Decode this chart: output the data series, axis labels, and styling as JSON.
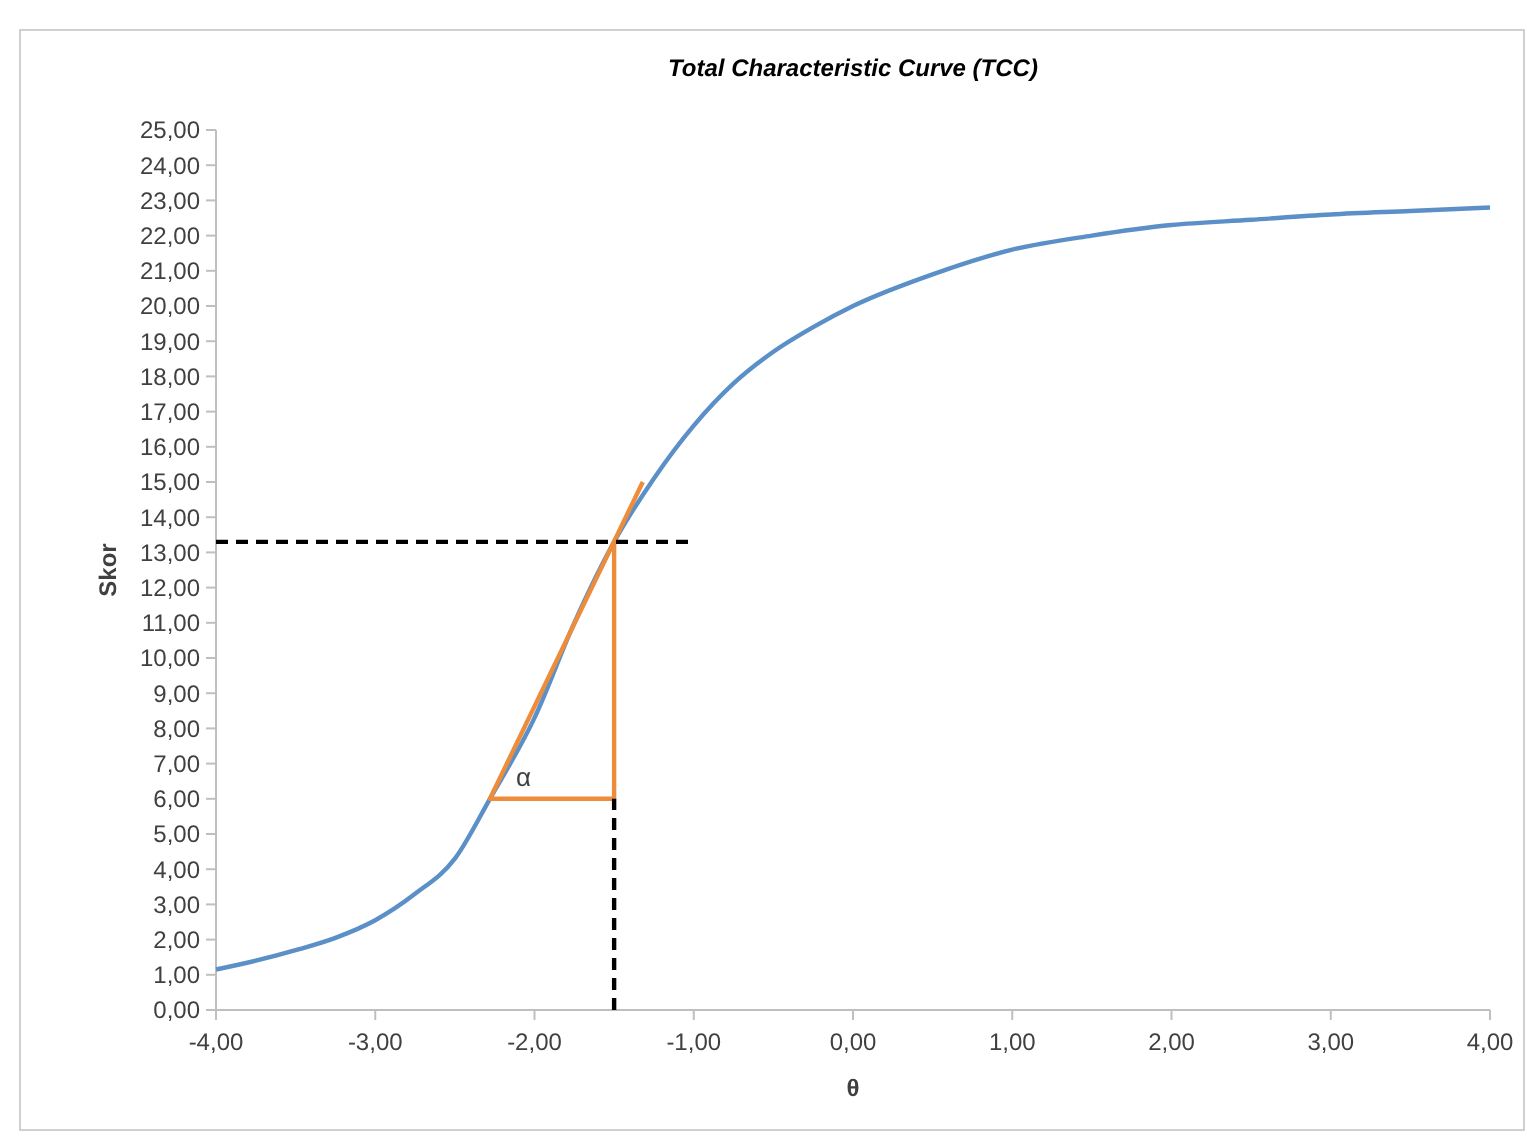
{
  "chart_data": {
    "type": "line",
    "title": "Total Characteristic Curve (TCC)",
    "xlabel": "θ",
    "ylabel": "Skor",
    "xlim": [
      -4,
      4
    ],
    "xticks": [
      {
        "value": -4,
        "label": "-4,00"
      },
      {
        "value": -3,
        "label": "-3,00"
      },
      {
        "value": -2,
        "label": "-2,00"
      },
      {
        "value": -1,
        "label": "-1,00"
      },
      {
        "value": 0,
        "label": "0,00"
      },
      {
        "value": 1,
        "label": "1,00"
      },
      {
        "value": 2,
        "label": "2,00"
      },
      {
        "value": 3,
        "label": "3,00"
      },
      {
        "value": 4,
        "label": "4,00"
      }
    ],
    "ylim": [
      0,
      25
    ],
    "yticks": [
      {
        "value": 0,
        "label": "0,00"
      },
      {
        "value": 1,
        "label": "1,00"
      },
      {
        "value": 2,
        "label": "2,00"
      },
      {
        "value": 3,
        "label": "3,00"
      },
      {
        "value": 4,
        "label": "4,00"
      },
      {
        "value": 5,
        "label": "5,00"
      },
      {
        "value": 6,
        "label": "6,00"
      },
      {
        "value": 7,
        "label": "7,00"
      },
      {
        "value": 8,
        "label": "8,00"
      },
      {
        "value": 9,
        "label": "9,00"
      },
      {
        "value": 10,
        "label": "10,00"
      },
      {
        "value": 11,
        "label": "11,00"
      },
      {
        "value": 12,
        "label": "12,00"
      },
      {
        "value": 13,
        "label": "13,00"
      },
      {
        "value": 14,
        "label": "14,00"
      },
      {
        "value": 15,
        "label": "15,00"
      },
      {
        "value": 16,
        "label": "16,00"
      },
      {
        "value": 17,
        "label": "17,00"
      },
      {
        "value": 18,
        "label": "18,00"
      },
      {
        "value": 19,
        "label": "19,00"
      },
      {
        "value": 20,
        "label": "20,00"
      },
      {
        "value": 21,
        "label": "21,00"
      },
      {
        "value": 22,
        "label": "22,00"
      },
      {
        "value": 23,
        "label": "23,00"
      },
      {
        "value": 24,
        "label": "24,00"
      },
      {
        "value": 25,
        "label": "25,00"
      }
    ],
    "grid": false,
    "marker": "none",
    "series": [
      {
        "color": "#5b8fc7",
        "line_style": "solid",
        "x": [
          -4,
          -3.75,
          -3.5,
          -3.25,
          -3,
          -2.75,
          -2.5,
          -2.28,
          -2,
          -1.75,
          -1.5,
          -1.25,
          -1,
          -0.75,
          -0.5,
          -0.25,
          0,
          0.5,
          1,
          1.5,
          2,
          2.5,
          3,
          3.5,
          4
        ],
        "values": [
          1.15,
          1.4,
          1.7,
          2.05,
          2.55,
          3.3,
          4.3,
          6,
          8.3,
          11,
          13.3,
          15.1,
          16.6,
          17.8,
          18.7,
          19.4,
          20,
          20.9,
          21.6,
          22,
          22.3,
          22.45,
          22.6,
          22.7,
          22.8
        ]
      },
      {
        "color": "#ed8c3b",
        "line_style": "solid",
        "x": [
          -1.32,
          -2.28,
          -1.5,
          -1.5
        ],
        "values": [
          15,
          6,
          6,
          13.3
        ]
      },
      {
        "color": "#000000",
        "line_style": "dashed",
        "x": [
          -4,
          -1
        ],
        "values": [
          13.3,
          13.3
        ]
      },
      {
        "color": "#000000",
        "line_style": "dashed",
        "x": [
          -1.5,
          -1.5
        ],
        "values": [
          0,
          6
        ]
      }
    ],
    "annotations": [
      "α"
    ]
  }
}
